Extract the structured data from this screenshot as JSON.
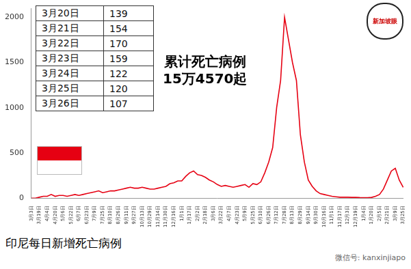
{
  "chart_data": {
    "type": "line",
    "title": "印尼每日新增死亡病例",
    "annotations": [
      "累计死亡病例",
      "15万4570起"
    ],
    "categories": [
      "3月3日",
      null,
      "3月19日",
      null,
      "4月4日",
      null,
      "4月20日",
      null,
      "5月6日",
      null,
      "5月22日",
      null,
      "6月7日",
      null,
      "6月23日",
      null,
      "7月9日",
      null,
      "7月25日",
      null,
      "8月10日",
      null,
      "8月26日",
      null,
      "9月11日",
      null,
      "9月27日",
      null,
      "10月13日",
      null,
      "10月29日",
      null,
      "11月14日",
      null,
      "11月30日",
      null,
      "12月16日",
      null,
      "1月1日",
      null,
      "1月17日",
      null,
      "2月2日",
      null,
      "2月18日",
      null,
      "3月6日",
      null,
      "3月22日",
      null,
      "4月7日",
      null,
      "4月23日",
      null,
      "5月9日",
      null,
      "5月25日",
      null,
      "6月10日",
      null,
      "6月26日",
      null,
      "7月12日",
      null,
      "7月28日",
      null,
      "8月13日",
      null,
      "8月29日",
      null,
      "9月14日",
      null,
      "9月30日",
      null,
      "10月16日",
      null,
      "11月1日",
      null,
      "11月17日",
      null,
      "12月3日",
      null,
      "12月19日",
      null,
      "1月4日",
      null,
      "1月20日",
      null,
      "2月5日",
      null,
      "2月21日",
      null,
      "3月9日",
      null,
      "3月25日"
    ],
    "values": [
      0,
      0,
      10,
      20,
      20,
      40,
      20,
      30,
      30,
      20,
      30,
      40,
      30,
      40,
      50,
      60,
      70,
      80,
      60,
      70,
      80,
      80,
      90,
      100,
      110,
      120,
      110,
      110,
      120,
      110,
      100,
      100,
      110,
      120,
      130,
      160,
      170,
      190,
      190,
      240,
      280,
      300,
      260,
      250,
      230,
      200,
      180,
      150,
      130,
      140,
      130,
      120,
      130,
      140,
      150,
      120,
      160,
      150,
      180,
      280,
      400,
      560,
      1000,
      1300,
      2000,
      1750,
      1500,
      1300,
      700,
      400,
      200,
      130,
      80,
      50,
      40,
      30,
      20,
      15,
      10,
      10,
      10,
      8,
      8,
      6,
      5,
      5,
      8,
      20,
      40,
      100,
      200,
      300,
      330,
      200,
      120
    ],
    "color": "#e60012",
    "ylim": [
      0,
      2100
    ],
    "yticks": [
      0,
      500,
      1000,
      1500,
      2000
    ],
    "grid": false
  },
  "table": {
    "rows": [
      [
        "3月20日",
        139
      ],
      [
        "3月21日",
        154
      ],
      [
        "3月22日",
        170
      ],
      [
        "3月23日",
        159
      ],
      [
        "3月24日",
        122
      ],
      [
        "3月25日",
        120
      ],
      [
        "3月26日",
        107
      ]
    ]
  },
  "logo": "新加坡眼",
  "watermark": "微信号: kanxinjiapo"
}
